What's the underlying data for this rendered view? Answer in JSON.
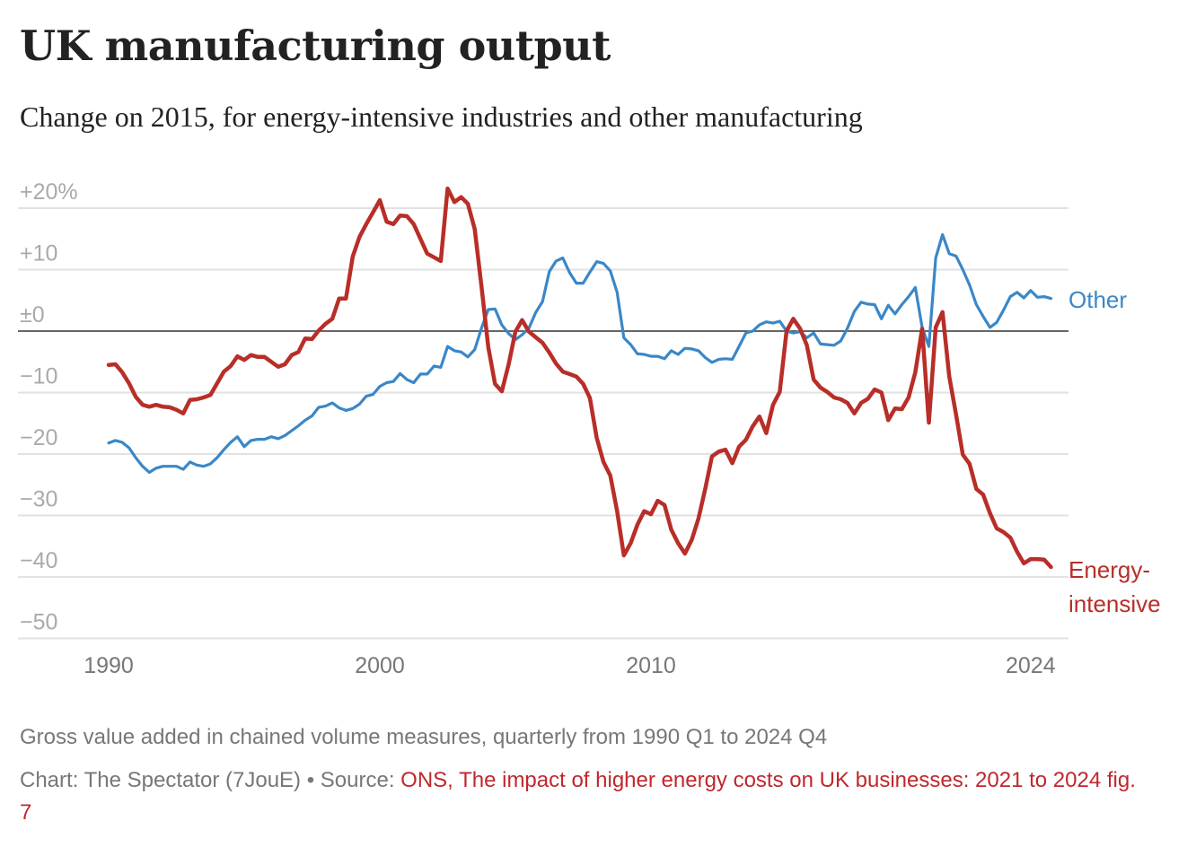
{
  "header": {
    "title": "UK manufacturing output",
    "subtitle": "Change on 2015, for energy-intensive industries and other manufacturing"
  },
  "footer": {
    "note": "Gross value added in chained volume measures, quarterly from 1990 Q1 to 2024 Q4",
    "credit_prefix": "Chart: The Spectator (7JouE) • Source: ",
    "source_link": "ONS, The impact of higher energy costs on UK businesses: 2021 to 2024 fig. 7"
  },
  "chart_data": {
    "type": "line",
    "title": "UK manufacturing output",
    "xlabel": "",
    "ylabel": "Change on 2015 (%)",
    "x_start": 1990,
    "x_step": 0.25,
    "xlim": [
      1990,
      2024.75
    ],
    "ylim": [
      -50,
      20
    ],
    "x_ticks": [
      {
        "value": 1990,
        "label": "1990"
      },
      {
        "value": 2000,
        "label": "2000"
      },
      {
        "value": 2010,
        "label": "2010"
      },
      {
        "value": 2024,
        "label": "2024"
      }
    ],
    "y_ticks": [
      {
        "value": 20,
        "label": "+20%"
      },
      {
        "value": 10,
        "label": "+10"
      },
      {
        "value": 0,
        "label": "±0"
      },
      {
        "value": -10,
        "label": "−10"
      },
      {
        "value": -20,
        "label": "−20"
      },
      {
        "value": -30,
        "label": "−30"
      },
      {
        "value": -40,
        "label": "−40"
      },
      {
        "value": -50,
        "label": "−50"
      }
    ],
    "grid": true,
    "series": [
      {
        "name": "Other",
        "label": "Other",
        "color": "#3a87c8",
        "values": [
          -18.2,
          -17.8,
          -18.1,
          -19,
          -20.6,
          -22,
          -23,
          -22.3,
          -22,
          -22,
          -22,
          -22.5,
          -21.3,
          -21.8,
          -22,
          -21.6,
          -20.6,
          -19.3,
          -18.1,
          -17.2,
          -18.8,
          -17.8,
          -17.6,
          -17.6,
          -17.2,
          -17.5,
          -17,
          -16.2,
          -15.4,
          -14.5,
          -13.8,
          -12.4,
          -12.2,
          -11.7,
          -12.5,
          -12.9,
          -12.6,
          -11.9,
          -10.6,
          -10.3,
          -9,
          -8.4,
          -8.2,
          -6.9,
          -7.9,
          -8.4,
          -7,
          -7,
          -5.7,
          -5.9,
          -2.5,
          -3.2,
          -3.4,
          -4.2,
          -3,
          0.5,
          3.5,
          3.6,
          1,
          -0.4,
          -1.4,
          -0.6,
          0.5,
          3,
          4.8,
          9.7,
          11.4,
          11.9,
          9.5,
          7.8,
          7.8,
          9.6,
          11.3,
          11,
          9.8,
          6.3,
          -1.1,
          -2.2,
          -3.7,
          -3.8,
          -4.1,
          -4.1,
          -4.5,
          -3.2,
          -3.8,
          -2.8,
          -2.9,
          -3.2,
          -4.3,
          -5.1,
          -4.6,
          -4.5,
          -4.6,
          -2.5,
          -0.3,
          0,
          1,
          1.5,
          1.3,
          1.6,
          0,
          -0.3,
          -0.1,
          -1.1,
          -0.3,
          -2.1,
          -2.2,
          -2.3,
          -1.6,
          0.5,
          3.2,
          4.7,
          4.4,
          4.3,
          2,
          4.2,
          2.8,
          4.3,
          5.6,
          7.1,
          0.6,
          -2.5,
          11.9,
          15.7,
          12.6,
          12.2,
          10,
          7.5,
          4.3,
          2.4,
          0.6,
          1.4,
          3.4,
          5.6,
          6.3,
          5.4,
          6.6,
          5.5,
          5.6,
          5.3
        ]
      },
      {
        "name": "Energy-intensive",
        "label_lines": [
          "Energy-",
          "intensive"
        ],
        "color": "#b82e28",
        "values": [
          -5.5,
          -5.4,
          -6.7,
          -8.5,
          -10.7,
          -12,
          -12.3,
          -12,
          -12.3,
          -12.4,
          -12.8,
          -13.4,
          -11.2,
          -11.1,
          -10.8,
          -10.4,
          -8.5,
          -6.6,
          -5.7,
          -4.1,
          -4.7,
          -3.9,
          -4.2,
          -4.2,
          -5,
          -5.8,
          -5.4,
          -3.9,
          -3.4,
          -1.2,
          -1.3,
          0.1,
          1.2,
          2,
          5.3,
          5.3,
          12.1,
          15.3,
          17.4,
          19.3,
          21.3,
          17.8,
          17.4,
          18.8,
          18.7,
          17.4,
          15,
          12.6,
          12,
          11.4,
          23.2,
          21,
          21.8,
          20.7,
          16.6,
          7.2,
          -2.6,
          -8.6,
          -9.8,
          -5.4,
          -0.1,
          1.8,
          -0.1,
          -1,
          -1.9,
          -3.5,
          -5.3,
          -6.6,
          -7,
          -7.4,
          -8.6,
          -10.9,
          -17.4,
          -21.3,
          -23.5,
          -29.3,
          -36.5,
          -34.5,
          -31.5,
          -29.3,
          -29.8,
          -27.6,
          -28.3,
          -32.3,
          -34.5,
          -36.2,
          -34,
          -30.5,
          -25.7,
          -20.4,
          -19.6,
          -19.3,
          -21.5,
          -18.8,
          -17.7,
          -15.5,
          -13.9,
          -16.6,
          -12,
          -9.9,
          0,
          2,
          0.4,
          -2.3,
          -7.9,
          -9.2,
          -9.9,
          -10.8,
          -11.1,
          -11.7,
          -13.4,
          -11.7,
          -11,
          -9.5,
          -10,
          -14.5,
          -12.6,
          -12.7,
          -10.8,
          -6.7,
          0.4,
          -14.9,
          0.6,
          3.1,
          -7.4,
          -13.6,
          -20.1,
          -21.6,
          -25.7,
          -26.6,
          -29.6,
          -32.1,
          -32.7,
          -33.6,
          -35.9,
          -37.8,
          -37.1,
          -37.1,
          -37.2,
          -38.4
        ]
      }
    ]
  }
}
